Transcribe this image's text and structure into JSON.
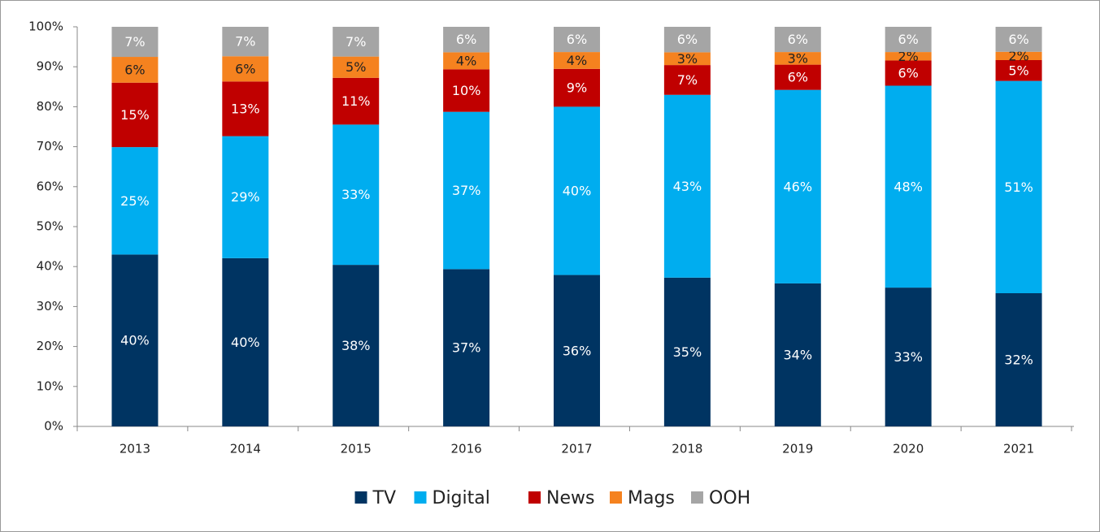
{
  "chart_data": {
    "type": "bar",
    "stacking": "percent",
    "categories": [
      "2013",
      "2014",
      "2015",
      "2016",
      "2017",
      "2018",
      "2019",
      "2020",
      "2021"
    ],
    "series": [
      {
        "name": "TV",
        "color": "#003462",
        "label_color": "#ffffff",
        "values": [
          40,
          40,
          38,
          37,
          36,
          35,
          34,
          33,
          32
        ],
        "value_labels": [
          "40%",
          "40%",
          "38%",
          "37%",
          "36%",
          "35%",
          "34%",
          "33%",
          "32%"
        ]
      },
      {
        "name": "Digital",
        "color": "#00adef",
        "label_color": "#ffffff",
        "values": [
          25,
          29,
          33,
          37,
          40,
          43,
          46,
          48,
          51
        ],
        "value_labels": [
          "25%",
          "29%",
          "33%",
          "37%",
          "40%",
          "43%",
          "46%",
          "48%",
          "51%"
        ]
      },
      {
        "name": "News",
        "color": "#c00000",
        "label_color": "#ffffff",
        "values": [
          15,
          13,
          11,
          10,
          9,
          7,
          6,
          6,
          5
        ],
        "value_labels": [
          "15%",
          "13%",
          "11%",
          "10%",
          "9%",
          "7%",
          "6%",
          "6%",
          "5%"
        ]
      },
      {
        "name": "Mags",
        "color": "#f5821f",
        "label_color": "#222222",
        "values": [
          6,
          6,
          5,
          4,
          4,
          3,
          3,
          2,
          2
        ],
        "value_labels": [
          "6%",
          "6%",
          "5%",
          "4%",
          "4%",
          "3%",
          "3%",
          "2%",
          "2%"
        ]
      },
      {
        "name": "OOH",
        "color": "#a5a5a5",
        "label_color": "#ffffff",
        "values": [
          7,
          7,
          7,
          6,
          6,
          6,
          6,
          6,
          6
        ],
        "value_labels": [
          "7%",
          "7%",
          "7%",
          "6%",
          "6%",
          "6%",
          "6%",
          "6%",
          "6%"
        ]
      }
    ],
    "ylim": [
      0,
      100
    ],
    "yticks": [
      {
        "value": 0,
        "label": "0%"
      },
      {
        "value": 10,
        "label": "10%"
      },
      {
        "value": 20,
        "label": "20%"
      },
      {
        "value": 30,
        "label": "30%"
      },
      {
        "value": 40,
        "label": "40%"
      },
      {
        "value": 50,
        "label": "50%"
      },
      {
        "value": 60,
        "label": "60%"
      },
      {
        "value": 70,
        "label": "70%"
      },
      {
        "value": 80,
        "label": "80%"
      },
      {
        "value": 90,
        "label": "90%"
      },
      {
        "value": 100,
        "label": "100%"
      }
    ],
    "grid": false,
    "legend": "bottom"
  }
}
